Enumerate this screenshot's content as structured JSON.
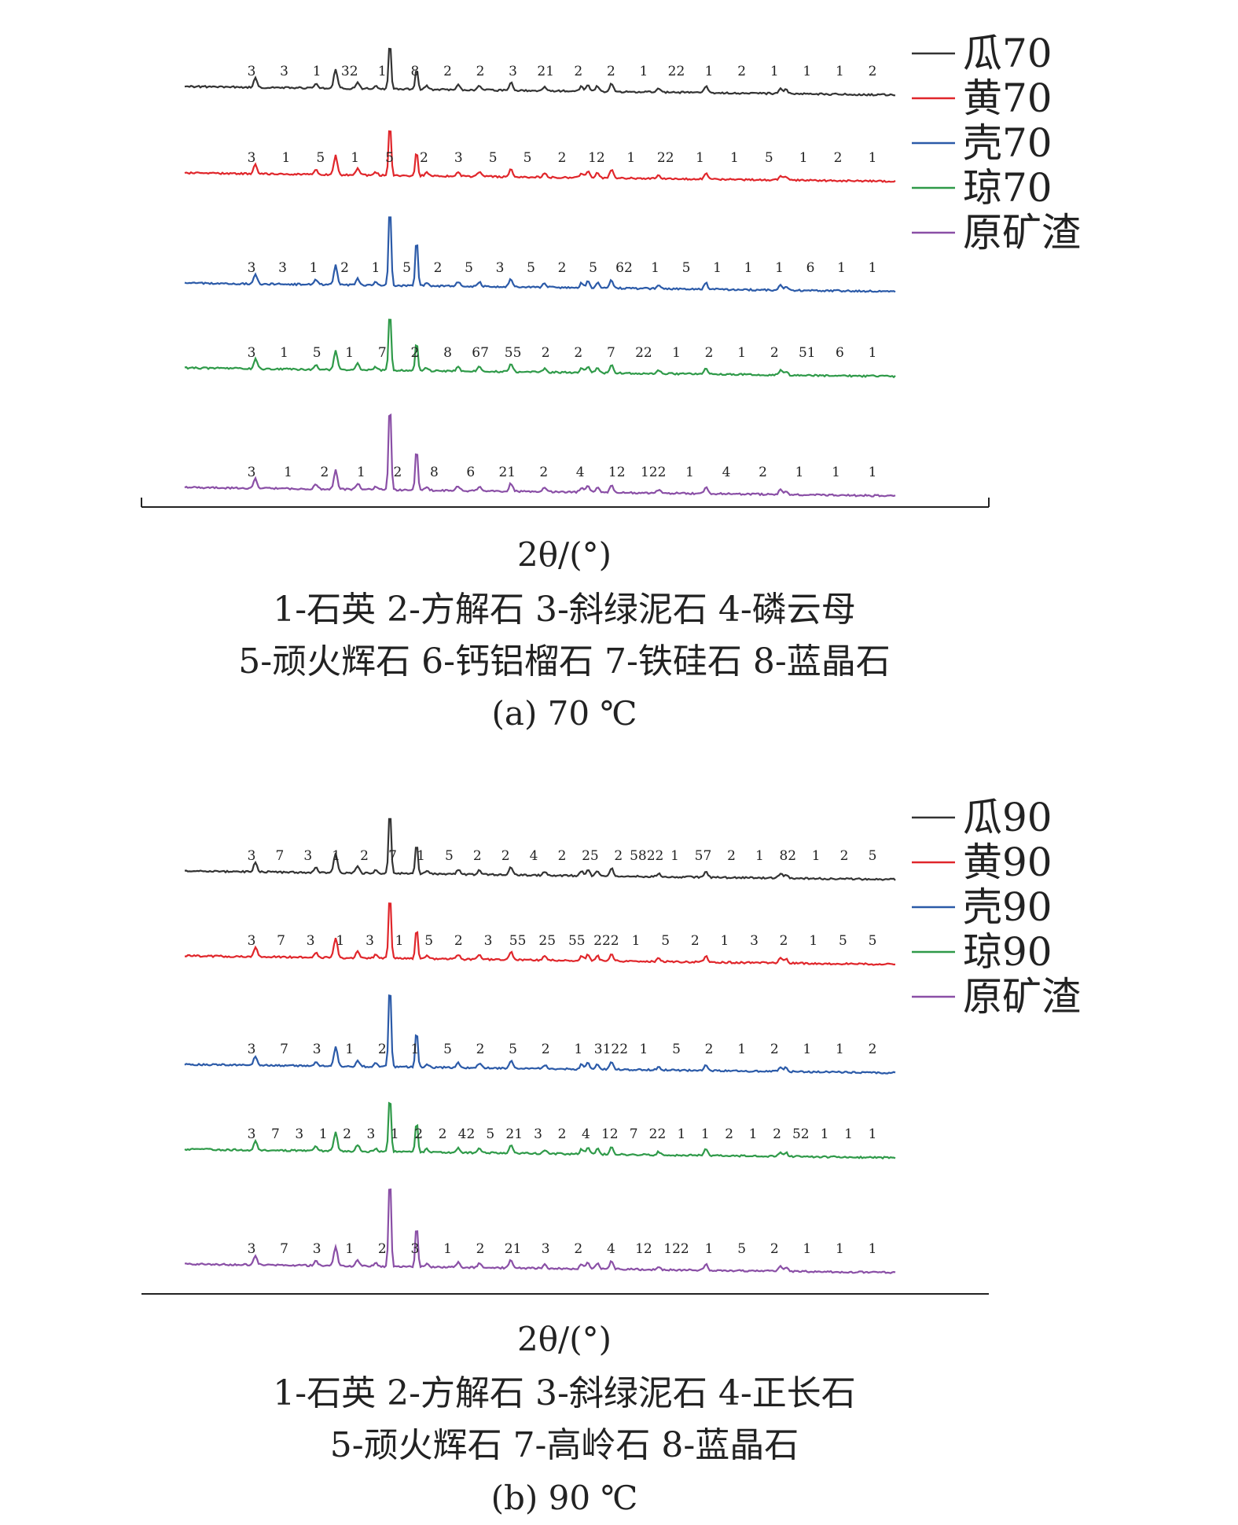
{
  "chart_data": [
    {
      "type": "line",
      "title": "",
      "xlabel": "2θ/(°)",
      "ylabel": "",
      "grid": false,
      "legend_position": "top-right",
      "series": [
        {
          "name": "瓜70",
          "color": "#333333"
        },
        {
          "name": "黄70",
          "color": "#e0262b"
        },
        {
          "name": "壳70",
          "color": "#2b5aa8"
        },
        {
          "name": "琼70",
          "color": "#2f9a49"
        },
        {
          "name": "原矿渣",
          "color": "#8a4fa6"
        }
      ],
      "peak_labels": [
        [
          "3",
          "3",
          "1",
          "32",
          "1",
          "8",
          "2",
          "2",
          "3",
          "21",
          "2",
          "2",
          "1",
          "22",
          "1",
          "2",
          "1",
          "1",
          "1",
          "2"
        ],
        [
          "3",
          "1",
          "5",
          "1",
          "5",
          "2",
          "3",
          "5",
          "5",
          "2",
          "12",
          "1",
          "22",
          "1",
          "1",
          "5",
          "1",
          "2",
          "1"
        ],
        [
          "3",
          "3",
          "1",
          "2",
          "1",
          "5",
          "2",
          "5",
          "3",
          "5",
          "2",
          "5",
          "62",
          "1",
          "5",
          "1",
          "1",
          "1",
          "6",
          "1",
          "1"
        ],
        [
          "3",
          "1",
          "5",
          "1",
          "7",
          "2",
          "8",
          "67",
          "55",
          "2",
          "2",
          "7",
          "22",
          "1",
          "2",
          "1",
          "2",
          "51",
          "6",
          "1"
        ],
        [
          "3",
          "1",
          "2",
          "1",
          "2",
          "8",
          "6",
          "21",
          "2",
          "4",
          "12",
          "122",
          "1",
          "4",
          "2",
          "1",
          "1",
          "1"
        ]
      ],
      "mineral_legend": [
        "1-石英 2-方解石 3-斜绿泥石 4-磷云母",
        "5-顽火辉石 6-钙铝榴石 7-铁硅石 8-蓝晶石"
      ],
      "caption": "(a) 70 ℃"
    },
    {
      "type": "line",
      "title": "",
      "xlabel": "2θ/(°)",
      "ylabel": "",
      "grid": false,
      "legend_position": "top-right",
      "series": [
        {
          "name": "瓜90",
          "color": "#333333"
        },
        {
          "name": "黄90",
          "color": "#e0262b"
        },
        {
          "name": "壳90",
          "color": "#2b5aa8"
        },
        {
          "name": "琼90",
          "color": "#2f9a49"
        },
        {
          "name": "原矿渣",
          "color": "#8a4fa6"
        }
      ],
      "peak_labels": [
        [
          "3",
          "7",
          "3",
          "1",
          "2",
          "7",
          "1",
          "5",
          "2",
          "2",
          "4",
          "2",
          "25",
          "2",
          "5822",
          "1",
          "57",
          "2",
          "1",
          "82",
          "1",
          "2",
          "5"
        ],
        [
          "3",
          "7",
          "3",
          "1",
          "3",
          "1",
          "5",
          "2",
          "3",
          "55",
          "25",
          "55",
          "222",
          "1",
          "5",
          "2",
          "1",
          "3",
          "2",
          "1",
          "5",
          "5"
        ],
        [
          "3",
          "7",
          "3",
          "1",
          "2",
          "1",
          "5",
          "2",
          "5",
          "2",
          "1",
          "3122",
          "1",
          "5",
          "2",
          "1",
          "2",
          "1",
          "1",
          "2"
        ],
        [
          "3",
          "7",
          "3",
          "1",
          "2",
          "3",
          "1",
          "2",
          "2",
          "42",
          "5",
          "21",
          "3",
          "2",
          "4",
          "12",
          "7",
          "22",
          "1",
          "1",
          "2",
          "1",
          "2",
          "52",
          "1",
          "1",
          "1"
        ],
        [
          "3",
          "7",
          "3",
          "1",
          "2",
          "3",
          "1",
          "2",
          "21",
          "3",
          "2",
          "4",
          "12",
          "122",
          "1",
          "5",
          "2",
          "1",
          "1",
          "1"
        ]
      ],
      "mineral_legend": [
        "1-石英 2-方解石 3-斜绿泥石 4-正长石",
        "5-顽火辉石 7-高岭石 8-蓝晶石"
      ],
      "caption": "(b) 90 ℃"
    }
  ]
}
